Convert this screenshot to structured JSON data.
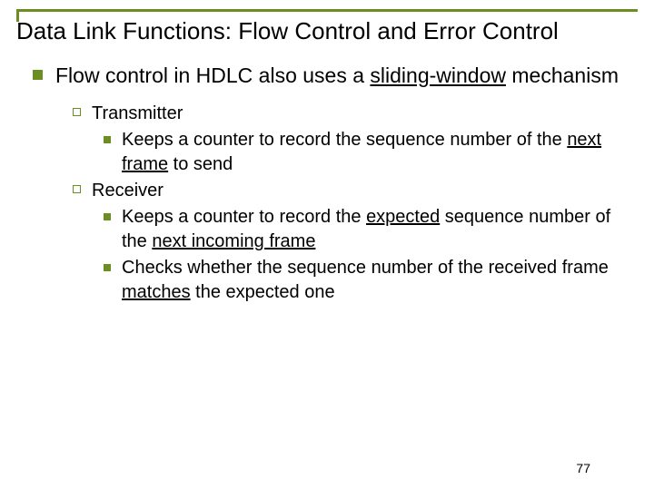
{
  "colors": {
    "accent": "#6b8e23",
    "text": "#000000",
    "background": "#ffffff"
  },
  "title": "Data Link Functions: Flow Control and Error Control",
  "main": {
    "pre": "Flow control in HDLC also uses a ",
    "underlined": "sliding-window",
    "post": " mechanism"
  },
  "sub": [
    {
      "label": "Transmitter",
      "items": [
        {
          "pre": "Keeps a counter to record the sequence number of the ",
          "u1": "next frame",
          "post": " to send"
        }
      ]
    },
    {
      "label": "Receiver",
      "items": [
        {
          "pre": "Keeps a counter to record the ",
          "u1": "expected",
          "mid": " sequence number of the ",
          "u2": "next incoming frame",
          "post": ""
        },
        {
          "pre": "Checks whether the sequence number of the received frame ",
          "u1": "matches",
          "post": " the expected one"
        }
      ]
    }
  ],
  "page_number": "77"
}
